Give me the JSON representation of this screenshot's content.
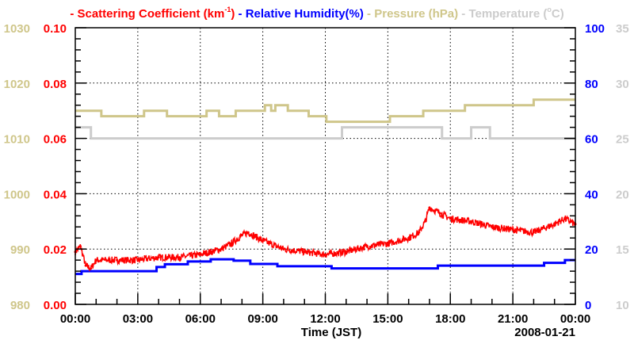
{
  "chart_data": {
    "type": "line",
    "title_parts": [
      {
        "text": "- Scattering Coefficient (km",
        "sup": "-1",
        "after": ")",
        "color": "#ff0000"
      },
      {
        "text": " - Relative Humidity(%)",
        "color": "#0000ff"
      },
      {
        "text": " - Pressure (hPa)",
        "color": "#cfc68a"
      },
      {
        "text": " - Temperature (",
        "sup": "o",
        "after": "C)",
        "color": "#cccccc"
      }
    ],
    "xlabel": "Time (JST)",
    "date": "2008-01-21",
    "xlim": [
      0,
      24
    ],
    "xticks": [
      "00:00",
      "03:00",
      "06:00",
      "09:00",
      "12:00",
      "15:00",
      "18:00",
      "21:00",
      "00:00"
    ],
    "grid": true,
    "axes": {
      "scattering": {
        "ylim": [
          0,
          0.1
        ],
        "ticks": [
          "0.00",
          "0.02",
          "0.04",
          "0.06",
          "0.08",
          "0.10"
        ],
        "color": "#ff0000",
        "side": "left-inner"
      },
      "pressure": {
        "ylim": [
          980,
          1030
        ],
        "ticks": [
          "980",
          "990",
          "1000",
          "1010",
          "1020",
          "1030"
        ],
        "color": "#cfc68a",
        "side": "left-outer"
      },
      "humidity": {
        "ylim": [
          0,
          100
        ],
        "ticks": [
          "0",
          "20",
          "40",
          "60",
          "80",
          "100"
        ],
        "color": "#0000ff",
        "side": "right-inner"
      },
      "temperature": {
        "ylim": [
          10,
          35
        ],
        "ticks": [
          "10",
          "15",
          "20",
          "25",
          "30",
          "35"
        ],
        "color": "#cccccc",
        "side": "right-outer"
      }
    },
    "series": [
      {
        "name": "Pressure (hPa)",
        "axis": "pressure",
        "color": "#cfc68a",
        "step": true,
        "x": [
          0,
          1.25,
          3.3,
          4.4,
          6.3,
          6.9,
          7.7,
          9.1,
          9.4,
          9.6,
          10.2,
          11.2,
          12.05,
          15.1,
          16.7,
          18.7,
          22.0,
          24
        ],
        "y": [
          1015,
          1014,
          1015,
          1014,
          1015,
          1014,
          1015,
          1016,
          1015,
          1016,
          1015,
          1014,
          1013,
          1014,
          1015,
          1016,
          1017,
          1017
        ]
      },
      {
        "name": "Temperature (C)",
        "axis": "temperature",
        "color": "#cccccc",
        "step": true,
        "x": [
          0,
          0.75,
          12.8,
          17.6,
          19.0,
          19.9,
          24
        ],
        "y": [
          26,
          25,
          26,
          25,
          26,
          25,
          25
        ]
      },
      {
        "name": "Relative Humidity(%)",
        "axis": "humidity",
        "color": "#0000ff",
        "step": true,
        "x": [
          0,
          0.3,
          3.9,
          4.3,
          5.4,
          6.5,
          7.6,
          8.4,
          9.7,
          12.3,
          17.4,
          22.5,
          23.5,
          24
        ],
        "y": [
          11,
          12,
          13.5,
          14.5,
          15.5,
          16.3,
          15.8,
          14.6,
          13.8,
          13,
          14,
          15,
          16,
          16
        ]
      },
      {
        "name": "Scattering Coefficient (km-1)",
        "axis": "scattering",
        "color": "#ff0000",
        "step": false,
        "x": [
          0,
          0.25,
          0.5,
          0.75,
          1,
          2,
          3,
          4,
          5,
          6,
          7,
          7.5,
          8,
          8.3,
          9,
          10,
          11,
          12,
          13,
          14,
          15,
          16,
          16.5,
          16.8,
          17,
          17.5,
          18,
          19,
          20,
          21,
          22,
          23,
          23.5,
          24
        ],
        "y": [
          0.019,
          0.021,
          0.014,
          0.013,
          0.016,
          0.016,
          0.016,
          0.017,
          0.017,
          0.018,
          0.02,
          0.022,
          0.025,
          0.026,
          0.023,
          0.02,
          0.019,
          0.018,
          0.019,
          0.021,
          0.022,
          0.024,
          0.026,
          0.03,
          0.035,
          0.033,
          0.031,
          0.03,
          0.028,
          0.027,
          0.026,
          0.029,
          0.031,
          0.029
        ]
      }
    ]
  }
}
